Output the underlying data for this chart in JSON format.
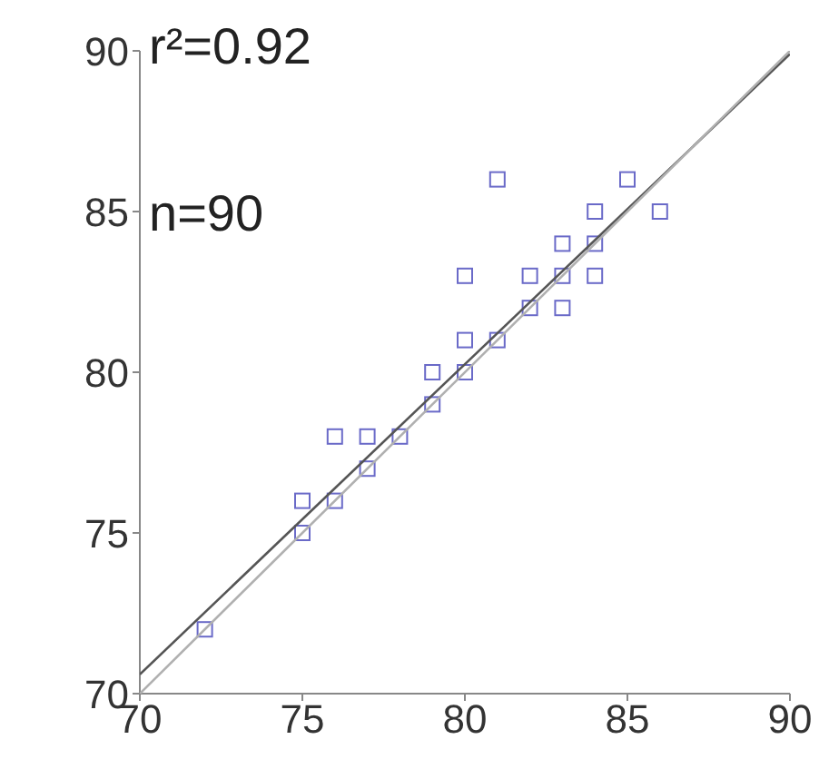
{
  "chart_data": {
    "type": "scatter",
    "annotations": [
      "r²=0.92",
      "n=90"
    ],
    "xlim": [
      70,
      90
    ],
    "xticks": [
      70,
      75,
      80,
      85,
      90
    ],
    "ylim": [
      70,
      90
    ],
    "yticks": [
      70,
      75,
      80,
      85,
      90
    ],
    "series": [
      {
        "color": "#6a6ac8",
        "marker": "square",
        "x": [
          72,
          75,
          75,
          76,
          76,
          77,
          77,
          78,
          79,
          79,
          80,
          80,
          80,
          81,
          81,
          82,
          82,
          83,
          83,
          83,
          84,
          84,
          84,
          85,
          86
        ],
        "values": [
          72,
          75,
          76,
          76,
          78,
          77,
          78,
          78,
          79,
          80,
          80,
          81,
          83,
          81,
          86,
          82,
          83,
          82,
          83,
          84,
          83,
          84,
          85,
          86,
          85
        ]
      },
      {
        "type": "line",
        "color": "#555555",
        "marker": "none",
        "line_style": "solid",
        "x": [
          70,
          90
        ],
        "values": [
          70.6,
          89.9
        ]
      },
      {
        "type": "line",
        "color": "#b0b0b0",
        "marker": "none",
        "line_style": "solid",
        "x": [
          70,
          90
        ],
        "values": [
          70,
          90
        ]
      }
    ]
  }
}
